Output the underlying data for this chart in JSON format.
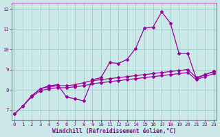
{
  "xlabel": "Windchill (Refroidissement éolien,°C)",
  "xlim": [
    -0.3,
    23.3
  ],
  "ylim": [
    6.5,
    12.3
  ],
  "yticks": [
    7,
    8,
    9,
    10,
    11,
    12
  ],
  "xticks": [
    0,
    1,
    2,
    3,
    4,
    5,
    6,
    7,
    8,
    9,
    10,
    11,
    12,
    13,
    14,
    15,
    16,
    17,
    18,
    19,
    20,
    21,
    22,
    23
  ],
  "bg_color": "#cce8e8",
  "grid_color": "#99cccc",
  "line_color": "#990099",
  "line1_x": [
    1,
    2,
    3,
    4,
    5,
    6,
    7,
    8,
    9,
    10,
    11,
    12,
    13,
    14,
    15,
    16,
    17,
    18,
    19,
    20,
    21,
    22,
    23
  ],
  "line1_y": [
    7.2,
    7.7,
    8.05,
    8.2,
    8.25,
    7.65,
    7.55,
    7.45,
    8.5,
    8.6,
    9.35,
    9.3,
    9.5,
    10.05,
    11.05,
    11.1,
    11.85,
    11.3,
    9.8,
    9.8,
    8.55,
    8.75,
    8.9
  ],
  "line2_x": [
    0,
    1,
    2,
    3,
    4,
    5,
    6,
    7,
    8,
    9,
    10,
    11,
    12,
    13,
    14,
    15,
    16,
    17,
    18,
    19,
    20,
    21,
    22,
    23
  ],
  "line2_y": [
    6.8,
    7.2,
    7.7,
    8.05,
    8.15,
    8.2,
    8.2,
    8.25,
    8.35,
    8.45,
    8.5,
    8.55,
    8.6,
    8.65,
    8.7,
    8.75,
    8.8,
    8.85,
    8.9,
    8.95,
    9.0,
    8.6,
    8.75,
    8.9
  ],
  "line3_x": [
    0,
    1,
    2,
    3,
    4,
    5,
    6,
    7,
    8,
    9,
    10,
    11,
    12,
    13,
    14,
    15,
    16,
    17,
    18,
    19,
    20,
    21,
    22,
    23
  ],
  "line3_y": [
    6.8,
    7.2,
    7.65,
    7.95,
    8.05,
    8.1,
    8.1,
    8.15,
    8.2,
    8.3,
    8.35,
    8.4,
    8.45,
    8.5,
    8.55,
    8.6,
    8.65,
    8.7,
    8.75,
    8.8,
    8.85,
    8.5,
    8.65,
    8.8
  ],
  "marker": "D",
  "marker_size": 2.0,
  "line_width": 0.9,
  "font_color": "#880088",
  "tick_fontsize": 5.2,
  "label_fontsize": 5.8
}
